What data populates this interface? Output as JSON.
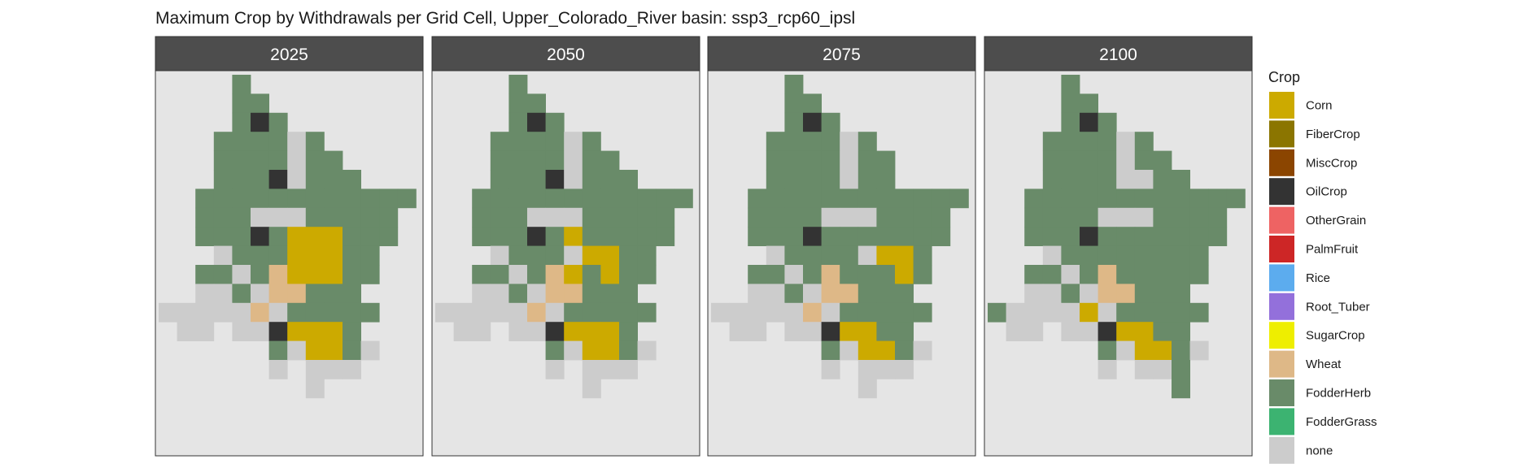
{
  "chart_data": {
    "type": "heatmap",
    "title": "Maximum Crop by Withdrawals per Grid Cell, Upper_Colorado_River basin: ssp3_rcp60_ipsl",
    "legend_title": "Crop",
    "legend": [
      {
        "name": "Corn",
        "color": "#CCAA00"
      },
      {
        "name": "FiberCrop",
        "color": "#8B7500"
      },
      {
        "name": "MiscCrop",
        "color": "#8B4500"
      },
      {
        "name": "OilCrop",
        "color": "#333333"
      },
      {
        "name": "OtherGrain",
        "color": "#EE6363"
      },
      {
        "name": "PalmFruit",
        "color": "#CD2626"
      },
      {
        "name": "Rice",
        "color": "#5CACEE"
      },
      {
        "name": "Root_Tuber",
        "color": "#9370DB"
      },
      {
        "name": "SugarCrop",
        "color": "#EEEE00"
      },
      {
        "name": "Wheat",
        "color": "#DEB887"
      },
      {
        "name": "FodderHerb",
        "color": "#698B69"
      },
      {
        "name": "FodderGrass",
        "color": "#3CB371"
      },
      {
        "name": "none",
        "color": "#CCCCCC"
      }
    ],
    "legend_position": "right",
    "panel_background": "#E5E5E5",
    "strip_background": "#4D4D4D",
    "grid": false,
    "cell_codes": {
      "H": "FodderHerb",
      "N": "none",
      "O": "OilCrop",
      "C": "Corn",
      "W": "Wheat",
      ".": "empty"
    },
    "panels": [
      {
        "label": "2025",
        "grid": [
          "....H.........",
          "....HH........",
          "....HOH.......",
          "...HHHHNH.....",
          "...HHHHNHH....",
          "...HHHONHHH...",
          "..HHHHHHHHHHHH",
          "..HHHNNNHHHHH.",
          "..HHHOHCCCHHH.",
          "...NHHHCCCHH..",
          "..HHNHWCCCHH..",
          "..NNHNWWHHH...",
          "NNNNNWNHHHHH..",
          ".NN.NNOCCCH...",
          "......HNCCHN..",
          "......N.NNN...",
          "........N....."
        ]
      },
      {
        "label": "2050",
        "grid": [
          "....H.........",
          "....HH........",
          "....HOH.......",
          "...HHHHNH.....",
          "...HHHHNHH....",
          "...HHHONHHH...",
          "..HHHHHHHHHHHH",
          "..HHHNNNHHHHH.",
          "..HHHOHCHHHHH.",
          "...NHHHNCCHH..",
          "..HHNHWCHCHH..",
          "..NNHNWWHHH...",
          "NNNNNWNHHHHH..",
          ".NN.NNOCCCH...",
          "......HNCCHN..",
          "......N.NNN...",
          "........N....."
        ]
      },
      {
        "label": "2075",
        "grid": [
          "....H.........",
          "....HH........",
          "....HOH.......",
          "...HHHHNH.....",
          "...HHHHNHH....",
          "...HHHHNHH....",
          "..HHHHHHHHHHHH",
          "..HHHHNNNHHHH.",
          "..HHHOHHHHHHH.",
          "...NHHHHNCCH..",
          "..HHNHWHHHCH..",
          "..NNHNWWHHH...",
          "NNNNNWNHHHHH..",
          ".NN.NNOCCHH...",
          "......HNCCHN..",
          "......N.NNN...",
          "........N....."
        ]
      },
      {
        "label": "2100",
        "grid": [
          "....H.........",
          "....HH........",
          "....HOH.......",
          "...HHHHNH.....",
          "...HHHHNHH....",
          "...HHHHNNHH...",
          "..HHHHHHHHHHHH",
          "..HHHHNNNHHHH.",
          "..HHHOHHHHHHH.",
          "...NHHHHHHHH..",
          "..HHNHWHHHHH..",
          "..NNHNWWHHH...",
          "HNNNNCNHHHHH..",
          ".NN.NNOCCHH...",
          "......HNCCHN..",
          "......N.NNH...",
          "..........H..."
        ]
      }
    ]
  }
}
